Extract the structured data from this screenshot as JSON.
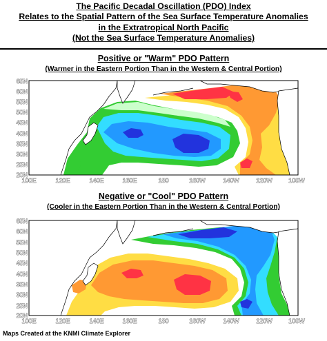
{
  "title_lines": [
    "The Pacific Decadal Oscillation (PDO) Index",
    "Relates to the Spatial Pattern of the Sea Surface Temperature Anomalies",
    "in the Extratropical North Pacific",
    "(Not the Sea Surface Temperature Anomalies)"
  ],
  "warm": {
    "title": "Positive or \"Warm\" PDO Pattern",
    "subtitle": "(Warmer in the Eastern Portion Than in the Western & Central Portion)"
  },
  "cool": {
    "title": "Negative or \"Cool\" PDO Pattern",
    "subtitle": "(Cooler in the Eastern Portion Than in the Western & Central Portion)"
  },
  "map_axes": {
    "lat_labels": [
      "65N",
      "60N",
      "55N",
      "50N",
      "45N",
      "40N",
      "35N",
      "30N",
      "25N",
      "20N"
    ],
    "lon_labels": [
      "100E",
      "120E",
      "140E",
      "160E",
      "180",
      "160W",
      "140W",
      "120W",
      "100W"
    ]
  },
  "colors": {
    "deep_blue": "#2233dd",
    "blue": "#2299ff",
    "cyan": "#33ddff",
    "green": "#33cc33",
    "light_green": "#aaf0aa",
    "pale": "#ccffcc",
    "yellow": "#ffdd44",
    "orange": "#ff9933",
    "red": "#ff3344",
    "land": "#ffffff",
    "coast": "#000000"
  },
  "footer": "Maps Created at the KNMI Climate Explorer"
}
